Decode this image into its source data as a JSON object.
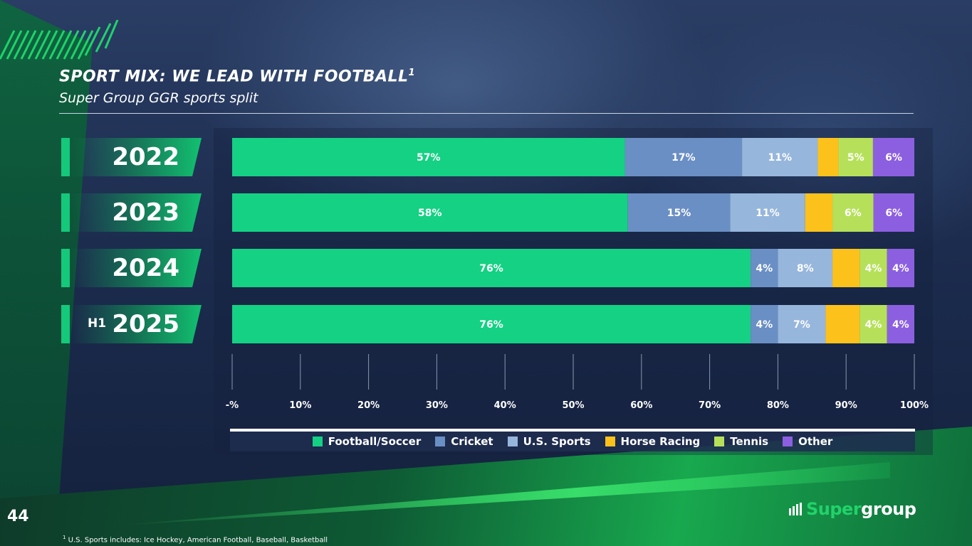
{
  "slide": {
    "title": "SPORT MIX: WE LEAD WITH FOOTBALL",
    "title_superscript": "1",
    "subtitle": "Super Group GGR sports split",
    "page_number": "44",
    "footnote_marker": "1",
    "footnote": "U.S. Sports includes: Ice Hockey, American Football, Baseball, Basketball",
    "logo": {
      "super": "Super",
      "group": "group"
    },
    "year_prefix_h1": "H1"
  },
  "chart_data": {
    "type": "bar",
    "orientation": "horizontal",
    "stacked": true,
    "categories": [
      "2022",
      "2023",
      "2024",
      "2025"
    ],
    "series": [
      {
        "name": "Football/Soccer",
        "color": "#14d184",
        "values": [
          57,
          58,
          76,
          76
        ],
        "labels": [
          "57%",
          "58%",
          "76%",
          "76%"
        ]
      },
      {
        "name": "Cricket",
        "color": "#6a8fc4",
        "values": [
          17,
          15,
          4,
          4
        ],
        "labels": [
          "17%",
          "15%",
          "4%",
          "4%"
        ]
      },
      {
        "name": "U.S. Sports",
        "color": "#97b6dc",
        "values": [
          11,
          11,
          8,
          7
        ],
        "labels": [
          "11%",
          "11%",
          "8%",
          "7%"
        ]
      },
      {
        "name": "Horse Racing",
        "color": "#fcc21b",
        "values": [
          3,
          4,
          4,
          5
        ],
        "labels": [
          "",
          "",
          "",
          ""
        ]
      },
      {
        "name": "Tennis",
        "color": "#b6e05a",
        "values": [
          5,
          6,
          4,
          4
        ],
        "labels": [
          "5%",
          "6%",
          "4%",
          "4%"
        ]
      },
      {
        "name": "Other",
        "color": "#8c5fe0",
        "values": [
          6,
          6,
          4,
          4
        ],
        "labels": [
          "6%",
          "6%",
          "4%",
          "4%"
        ]
      }
    ],
    "x_ticks": [
      "-%",
      "10%",
      "20%",
      "30%",
      "40%",
      "50%",
      "60%",
      "70%",
      "80%",
      "90%",
      "100%"
    ],
    "xlim": [
      0,
      100
    ],
    "legend_position": "bottom",
    "grid": false
  }
}
